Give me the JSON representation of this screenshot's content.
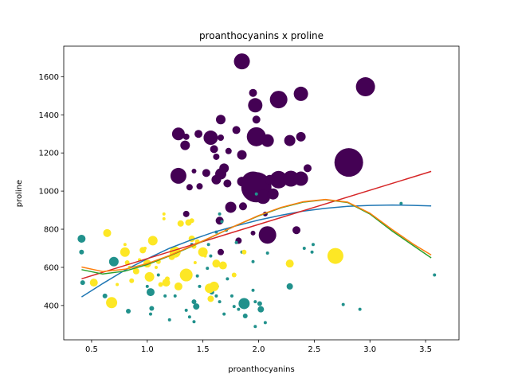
{
  "chart_data": {
    "type": "scatter",
    "title": "proanthocyanins x proline",
    "xlabel": "proanthocyanins",
    "ylabel": "proline",
    "xlim": [
      0.25,
      3.8
    ],
    "ylim": [
      220,
      1760
    ],
    "xticks": [
      0.5,
      1.0,
      1.5,
      2.0,
      2.5,
      3.0,
      3.5
    ],
    "yticks": [
      400,
      600,
      800,
      1000,
      1200,
      1400,
      1600
    ],
    "grid": false,
    "legend": "none",
    "colors": {
      "class0": "#440154",
      "class1": "#21918c",
      "class2": "#fde725"
    },
    "series": [
      {
        "color": "#440154",
        "points": [
          {
            "x": 1.85,
            "y": 1680,
            "s": 10
          },
          {
            "x": 2.96,
            "y": 1547,
            "s": 12
          },
          {
            "x": 1.95,
            "y": 1515,
            "s": 5
          },
          {
            "x": 2.38,
            "y": 1510,
            "s": 9
          },
          {
            "x": 2.18,
            "y": 1480,
            "s": 11
          },
          {
            "x": 1.97,
            "y": 1450,
            "s": 9
          },
          {
            "x": 1.98,
            "y": 1375,
            "s": 5
          },
          {
            "x": 1.66,
            "y": 1375,
            "s": 6
          },
          {
            "x": 1.28,
            "y": 1300,
            "s": 8
          },
          {
            "x": 1.46,
            "y": 1300,
            "s": 5
          },
          {
            "x": 1.57,
            "y": 1280,
            "s": 9
          },
          {
            "x": 1.8,
            "y": 1320,
            "s": 5
          },
          {
            "x": 1.98,
            "y": 1285,
            "s": 12
          },
          {
            "x": 2.08,
            "y": 1265,
            "s": 8
          },
          {
            "x": 2.28,
            "y": 1265,
            "s": 7
          },
          {
            "x": 2.38,
            "y": 1285,
            "s": 6
          },
          {
            "x": 1.35,
            "y": 1285,
            "s": 4
          },
          {
            "x": 1.66,
            "y": 1280,
            "s": 4
          },
          {
            "x": 1.34,
            "y": 1240,
            "s": 6
          },
          {
            "x": 1.85,
            "y": 1190,
            "s": 6
          },
          {
            "x": 1.6,
            "y": 1220,
            "s": 5
          },
          {
            "x": 1.62,
            "y": 1180,
            "s": 4
          },
          {
            "x": 1.73,
            "y": 1210,
            "s": 4
          },
          {
            "x": 2.81,
            "y": 1150,
            "s": 18
          },
          {
            "x": 2.44,
            "y": 1120,
            "s": 5
          },
          {
            "x": 1.28,
            "y": 1080,
            "s": 10
          },
          {
            "x": 1.42,
            "y": 1105,
            "s": 3
          },
          {
            "x": 1.53,
            "y": 1095,
            "s": 5
          },
          {
            "x": 1.62,
            "y": 1060,
            "s": 6
          },
          {
            "x": 1.69,
            "y": 1120,
            "s": 6
          },
          {
            "x": 1.66,
            "y": 1090,
            "s": 7
          },
          {
            "x": 1.85,
            "y": 1050,
            "s": 6
          },
          {
            "x": 1.95,
            "y": 1040,
            "s": 15
          },
          {
            "x": 1.98,
            "y": 1020,
            "s": 19
          },
          {
            "x": 2.04,
            "y": 970,
            "s": 9
          },
          {
            "x": 2.13,
            "y": 985,
            "s": 7
          },
          {
            "x": 2.18,
            "y": 1060,
            "s": 11
          },
          {
            "x": 2.29,
            "y": 1065,
            "s": 10
          },
          {
            "x": 2.38,
            "y": 1065,
            "s": 9
          },
          {
            "x": 2.1,
            "y": 1060,
            "s": 6
          },
          {
            "x": 1.38,
            "y": 1020,
            "s": 4
          },
          {
            "x": 1.47,
            "y": 1025,
            "s": 4
          },
          {
            "x": 1.72,
            "y": 1040,
            "s": 5
          },
          {
            "x": 1.75,
            "y": 915,
            "s": 7
          },
          {
            "x": 1.86,
            "y": 920,
            "s": 5
          },
          {
            "x": 1.35,
            "y": 880,
            "s": 4
          },
          {
            "x": 1.65,
            "y": 845,
            "s": 5
          },
          {
            "x": 2.08,
            "y": 770,
            "s": 11
          },
          {
            "x": 2.06,
            "y": 880,
            "s": 3
          },
          {
            "x": 1.95,
            "y": 780,
            "s": 3
          },
          {
            "x": 2.34,
            "y": 795,
            "s": 5
          },
          {
            "x": 1.82,
            "y": 740,
            "s": 4
          },
          {
            "x": 1.66,
            "y": 680,
            "s": 4
          }
        ]
      },
      {
        "color": "#21918c",
        "points": [
          {
            "x": 0.41,
            "y": 750,
            "s": 5
          },
          {
            "x": 0.41,
            "y": 680,
            "s": 3
          },
          {
            "x": 0.42,
            "y": 520,
            "s": 3
          },
          {
            "x": 0.7,
            "y": 630,
            "s": 6
          },
          {
            "x": 0.62,
            "y": 450,
            "s": 3
          },
          {
            "x": 0.83,
            "y": 370,
            "s": 3
          },
          {
            "x": 1.03,
            "y": 470,
            "s": 5
          },
          {
            "x": 1.04,
            "y": 385,
            "s": 3
          },
          {
            "x": 1.03,
            "y": 355,
            "s": 2
          },
          {
            "x": 1.0,
            "y": 500,
            "s": 2
          },
          {
            "x": 1.1,
            "y": 560,
            "s": 2
          },
          {
            "x": 1.16,
            "y": 450,
            "s": 2
          },
          {
            "x": 1.2,
            "y": 325,
            "s": 2
          },
          {
            "x": 1.35,
            "y": 375,
            "s": 2
          },
          {
            "x": 1.38,
            "y": 340,
            "s": 2
          },
          {
            "x": 1.42,
            "y": 420,
            "s": 3
          },
          {
            "x": 1.44,
            "y": 395,
            "s": 4
          },
          {
            "x": 1.42,
            "y": 315,
            "s": 2
          },
          {
            "x": 1.45,
            "y": 555,
            "s": 2
          },
          {
            "x": 1.47,
            "y": 500,
            "s": 2
          },
          {
            "x": 1.55,
            "y": 490,
            "s": 2
          },
          {
            "x": 1.58,
            "y": 470,
            "s": 3
          },
          {
            "x": 1.63,
            "y": 500,
            "s": 2
          },
          {
            "x": 1.62,
            "y": 450,
            "s": 2
          },
          {
            "x": 1.65,
            "y": 420,
            "s": 2
          },
          {
            "x": 1.69,
            "y": 355,
            "s": 2
          },
          {
            "x": 1.72,
            "y": 540,
            "s": 2
          },
          {
            "x": 1.76,
            "y": 450,
            "s": 2
          },
          {
            "x": 1.78,
            "y": 395,
            "s": 2
          },
          {
            "x": 1.82,
            "y": 380,
            "s": 2
          },
          {
            "x": 1.87,
            "y": 410,
            "s": 7
          },
          {
            "x": 1.88,
            "y": 345,
            "s": 3
          },
          {
            "x": 1.95,
            "y": 480,
            "s": 2
          },
          {
            "x": 1.97,
            "y": 420,
            "s": 2
          },
          {
            "x": 2.01,
            "y": 410,
            "s": 3
          },
          {
            "x": 2.02,
            "y": 380,
            "s": 4
          },
          {
            "x": 1.97,
            "y": 290,
            "s": 2
          },
          {
            "x": 2.06,
            "y": 310,
            "s": 2
          },
          {
            "x": 1.98,
            "y": 985,
            "s": 2
          },
          {
            "x": 1.55,
            "y": 720,
            "s": 2
          },
          {
            "x": 1.62,
            "y": 785,
            "s": 2
          },
          {
            "x": 1.4,
            "y": 720,
            "s": 2
          },
          {
            "x": 1.5,
            "y": 690,
            "s": 2
          },
          {
            "x": 1.57,
            "y": 660,
            "s": 2
          },
          {
            "x": 1.65,
            "y": 880,
            "s": 2
          },
          {
            "x": 1.67,
            "y": 840,
            "s": 2
          },
          {
            "x": 1.71,
            "y": 795,
            "s": 2
          },
          {
            "x": 1.8,
            "y": 730,
            "s": 2
          },
          {
            "x": 1.85,
            "y": 680,
            "s": 2
          },
          {
            "x": 1.95,
            "y": 630,
            "s": 2
          },
          {
            "x": 2.08,
            "y": 675,
            "s": 2
          },
          {
            "x": 2.28,
            "y": 500,
            "s": 4
          },
          {
            "x": 2.41,
            "y": 700,
            "s": 2
          },
          {
            "x": 2.49,
            "y": 720,
            "s": 2
          },
          {
            "x": 2.48,
            "y": 680,
            "s": 2
          },
          {
            "x": 2.76,
            "y": 405,
            "s": 2
          },
          {
            "x": 2.91,
            "y": 380,
            "s": 2
          },
          {
            "x": 3.28,
            "y": 935,
            "s": 2
          },
          {
            "x": 3.58,
            "y": 560,
            "s": 2
          },
          {
            "x": 1.54,
            "y": 595,
            "s": 2
          },
          {
            "x": 1.25,
            "y": 450,
            "s": 2
          }
        ]
      },
      {
        "color": "#fde725",
        "points": [
          {
            "x": 0.52,
            "y": 520,
            "s": 5
          },
          {
            "x": 0.64,
            "y": 780,
            "s": 5
          },
          {
            "x": 0.68,
            "y": 415,
            "s": 7
          },
          {
            "x": 0.73,
            "y": 510,
            "s": 2
          },
          {
            "x": 0.8,
            "y": 680,
            "s": 6
          },
          {
            "x": 0.82,
            "y": 625,
            "s": 3
          },
          {
            "x": 0.8,
            "y": 720,
            "s": 2
          },
          {
            "x": 0.84,
            "y": 600,
            "s": 2
          },
          {
            "x": 0.86,
            "y": 530,
            "s": 3
          },
          {
            "x": 0.9,
            "y": 580,
            "s": 4
          },
          {
            "x": 0.93,
            "y": 640,
            "s": 2
          },
          {
            "x": 0.96,
            "y": 690,
            "s": 4
          },
          {
            "x": 0.98,
            "y": 700,
            "s": 2
          },
          {
            "x": 1.0,
            "y": 620,
            "s": 5
          },
          {
            "x": 1.02,
            "y": 550,
            "s": 6
          },
          {
            "x": 1.05,
            "y": 740,
            "s": 6
          },
          {
            "x": 1.1,
            "y": 630,
            "s": 3
          },
          {
            "x": 1.12,
            "y": 510,
            "s": 3
          },
          {
            "x": 1.15,
            "y": 880,
            "s": 2
          },
          {
            "x": 1.15,
            "y": 855,
            "s": 2
          },
          {
            "x": 1.18,
            "y": 540,
            "s": 3
          },
          {
            "x": 1.22,
            "y": 655,
            "s": 4
          },
          {
            "x": 1.25,
            "y": 680,
            "s": 7
          },
          {
            "x": 1.28,
            "y": 500,
            "s": 5
          },
          {
            "x": 1.3,
            "y": 830,
            "s": 4
          },
          {
            "x": 1.35,
            "y": 560,
            "s": 8
          },
          {
            "x": 1.37,
            "y": 835,
            "s": 4
          },
          {
            "x": 1.4,
            "y": 845,
            "s": 3
          },
          {
            "x": 1.4,
            "y": 750,
            "s": 4
          },
          {
            "x": 1.42,
            "y": 710,
            "s": 3
          },
          {
            "x": 1.43,
            "y": 625,
            "s": 2
          },
          {
            "x": 1.45,
            "y": 735,
            "s": 3
          },
          {
            "x": 1.5,
            "y": 680,
            "s": 6
          },
          {
            "x": 1.52,
            "y": 660,
            "s": 2
          },
          {
            "x": 1.56,
            "y": 490,
            "s": 6
          },
          {
            "x": 1.57,
            "y": 435,
            "s": 4
          },
          {
            "x": 1.6,
            "y": 500,
            "s": 6
          },
          {
            "x": 1.62,
            "y": 620,
            "s": 5
          },
          {
            "x": 1.68,
            "y": 610,
            "s": 5
          },
          {
            "x": 1.78,
            "y": 560,
            "s": 3
          },
          {
            "x": 1.87,
            "y": 680,
            "s": 3
          },
          {
            "x": 2.28,
            "y": 620,
            "s": 5
          },
          {
            "x": 2.69,
            "y": 660,
            "s": 10
          },
          {
            "x": 1.17,
            "y": 520,
            "s": 5
          },
          {
            "x": 1.08,
            "y": 600,
            "s": 2
          }
        ]
      }
    ],
    "fit_lines": [
      {
        "color": "#1f77b4",
        "x": [
          0.41,
          0.6,
          0.8,
          1.0,
          1.2,
          1.4,
          1.6,
          1.8,
          2.0,
          2.2,
          2.4,
          2.6,
          2.8,
          3.0,
          3.2,
          3.4,
          3.55
        ],
        "y": [
          445,
          515,
          585,
          645,
          700,
          745,
          785,
          818,
          848,
          873,
          895,
          910,
          920,
          925,
          927,
          925,
          922
        ]
      },
      {
        "color": "#d62728",
        "x": [
          0.41,
          3.55
        ],
        "y": [
          540,
          1103
        ]
      },
      {
        "color": "#2ca02c",
        "x": [
          0.41,
          0.6,
          0.8,
          1.0,
          1.2,
          1.4,
          1.6,
          1.8,
          2.0,
          2.2,
          2.4,
          2.6,
          2.8,
          3.0,
          3.2,
          3.4,
          3.55
        ],
        "y": [
          588,
          565,
          580,
          615,
          660,
          710,
          765,
          820,
          870,
          912,
          942,
          955,
          940,
          880,
          790,
          710,
          650
        ]
      },
      {
        "color": "#ff7f0e",
        "x": [
          0.41,
          0.6,
          0.8,
          1.0,
          1.2,
          1.4,
          1.6,
          1.8,
          2.0,
          2.2,
          2.4,
          2.6,
          2.8,
          3.0,
          3.2,
          3.4,
          3.55
        ],
        "y": [
          602,
          578,
          590,
          620,
          662,
          712,
          766,
          820,
          872,
          914,
          944,
          956,
          942,
          884,
          798,
          718,
          665
        ]
      }
    ]
  }
}
